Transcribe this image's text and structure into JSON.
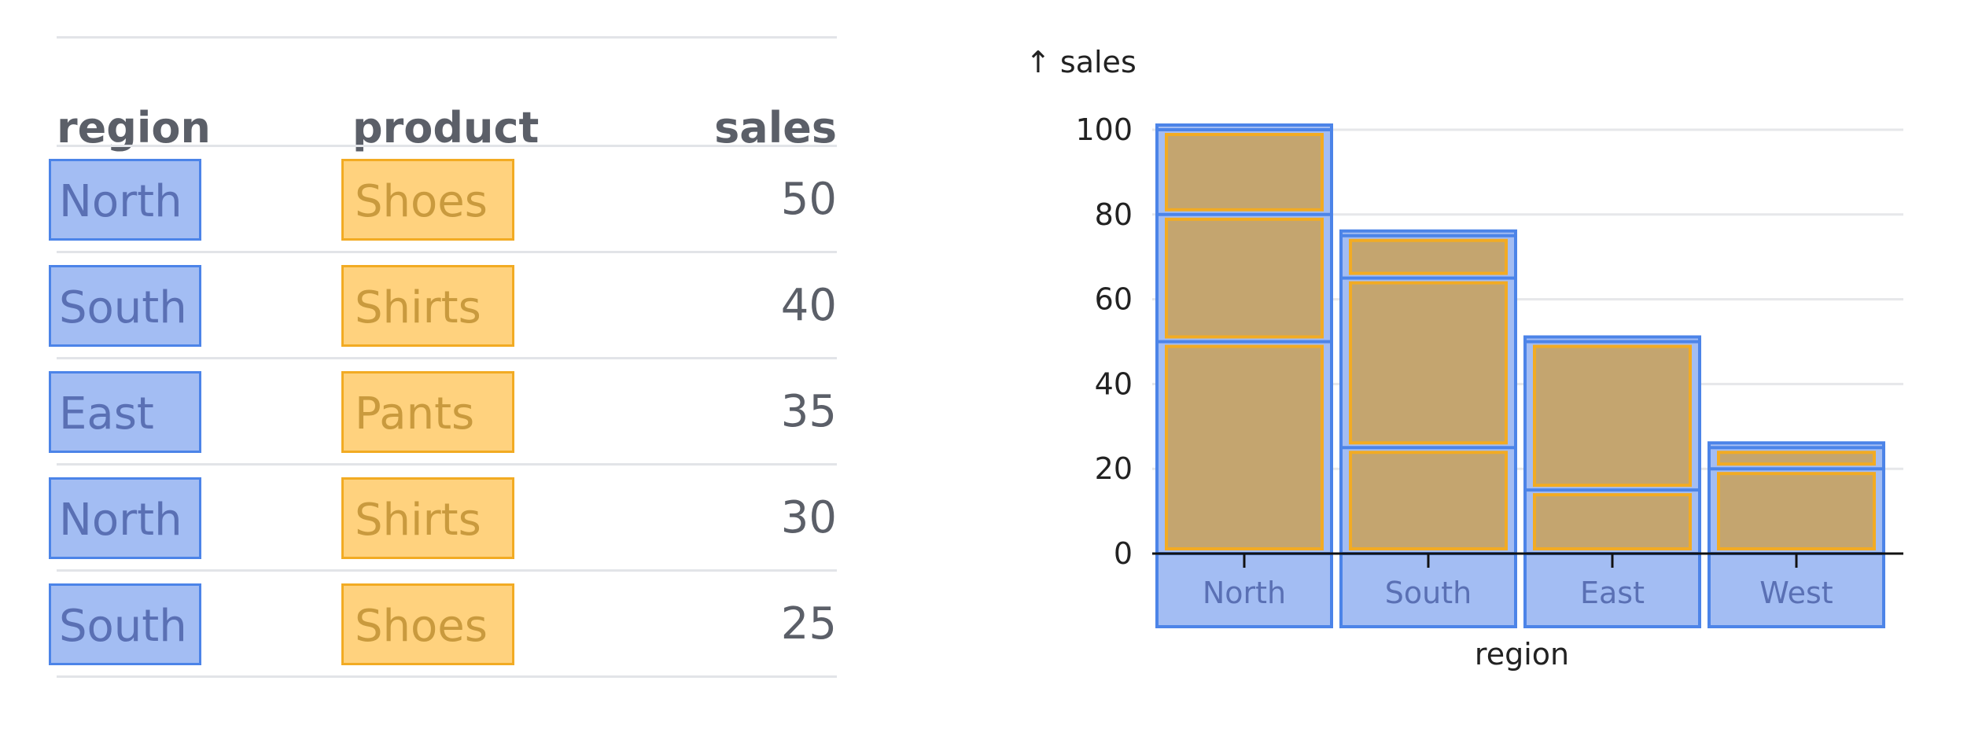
{
  "table": {
    "headers": {
      "region": "region",
      "product": "product",
      "sales": "sales"
    },
    "rows": [
      {
        "region": "North",
        "product": "Shoes",
        "sales": "50"
      },
      {
        "region": "South",
        "product": "Shirts",
        "sales": "40"
      },
      {
        "region": "East",
        "product": "Pants",
        "sales": "35"
      },
      {
        "region": "North",
        "product": "Shirts",
        "sales": "30"
      },
      {
        "region": "South",
        "product": "Shoes",
        "sales": "25"
      }
    ]
  },
  "colors": {
    "region_fill": "#a3bdf3",
    "region_stroke": "#4c84e8",
    "product_fill": "#ffd27e",
    "product_stroke": "#f2ab23",
    "bar_fill": "#c4a56f",
    "grid": "#e6e7ea",
    "axis": "#111111",
    "text": "#222222"
  },
  "chart_data": {
    "type": "bar",
    "title": "",
    "xlabel": "region",
    "ylabel": "↑ sales",
    "categories": [
      "North",
      "South",
      "East",
      "West"
    ],
    "ylim": [
      0,
      100
    ],
    "yticks": [
      0,
      20,
      40,
      60,
      80,
      100
    ],
    "grid": true,
    "stacked": true,
    "segments": [
      [
        {
          "product": "Shoes",
          "value": 50
        },
        {
          "product": "Shirts",
          "value": 30
        },
        {
          "product": "Pants",
          "value": 20
        }
      ],
      [
        {
          "product": "Shoes",
          "value": 25
        },
        {
          "product": "Shirts",
          "value": 40
        },
        {
          "product": "Pants",
          "value": 10
        }
      ],
      [
        {
          "product": "Shoes",
          "value": 15
        },
        {
          "product": "Pants",
          "value": 35
        }
      ],
      [
        {
          "product": "Shirts",
          "value": 20
        },
        {
          "product": "Pants",
          "value": 5
        }
      ]
    ],
    "totals": [
      100,
      75,
      50,
      25
    ]
  }
}
